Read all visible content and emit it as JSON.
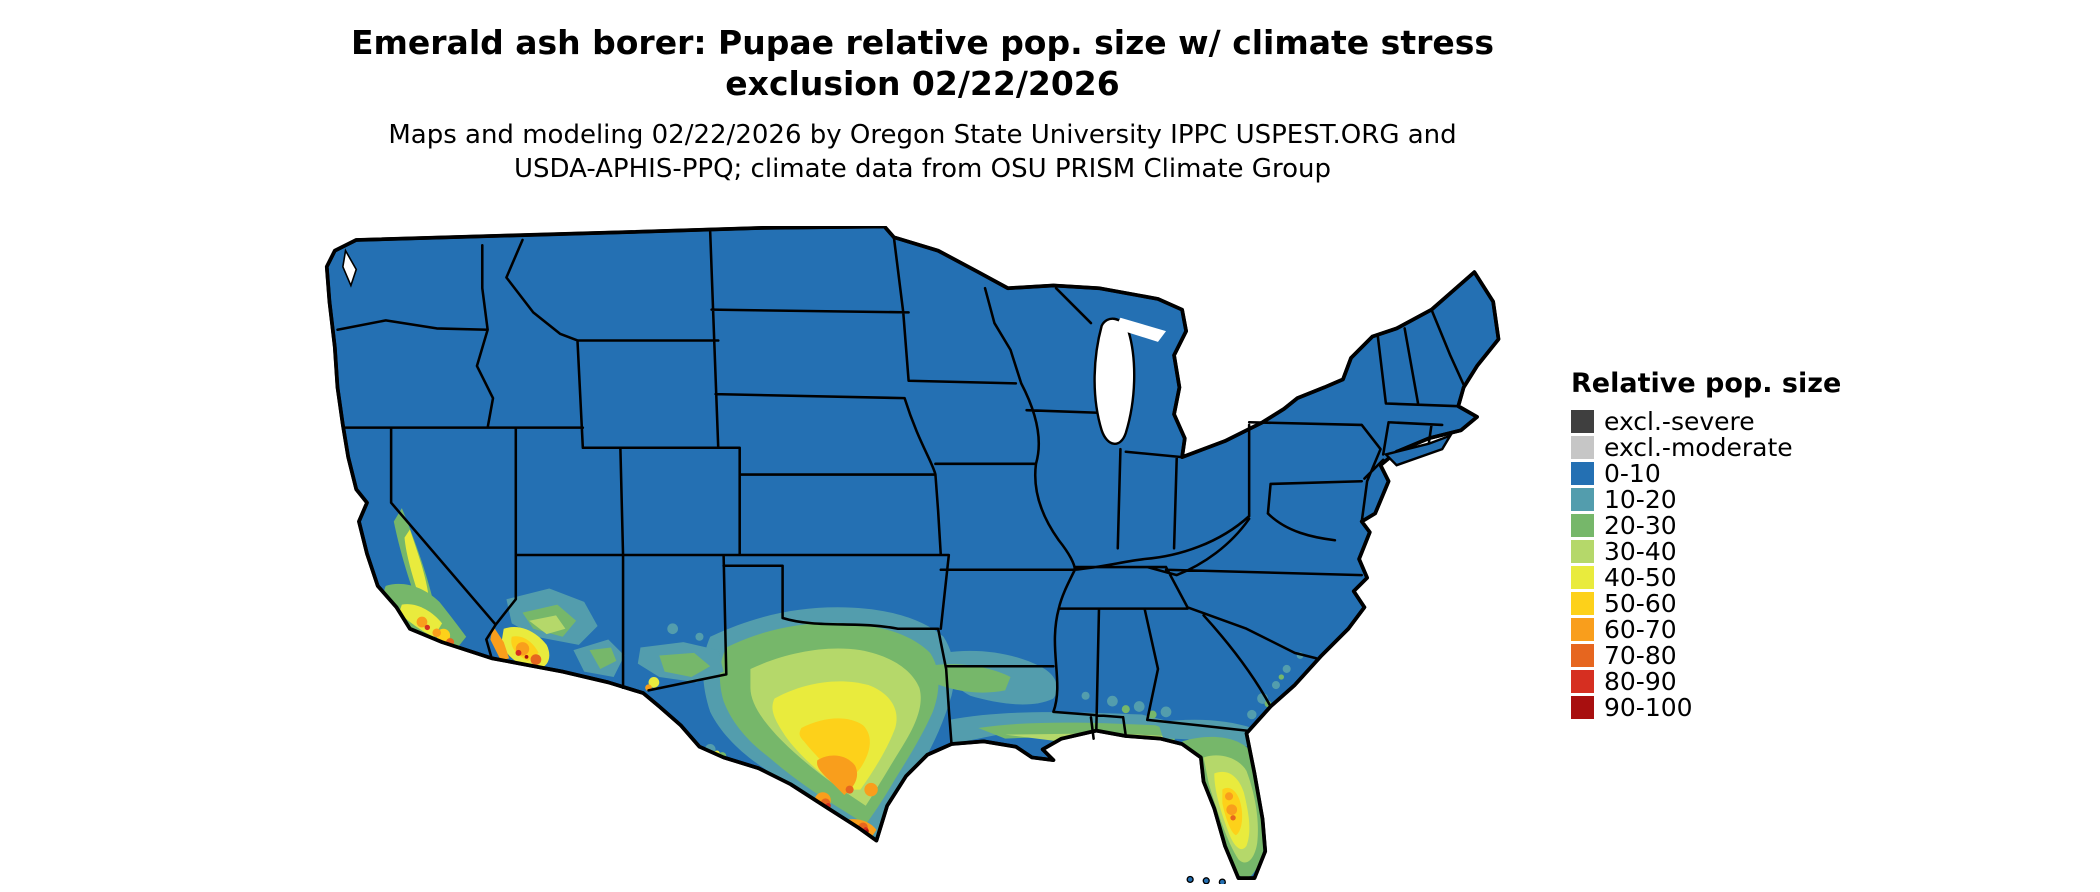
{
  "title": {
    "line1": "Emerald ash borer: Pupae relative pop. size w/ climate stress",
    "line2": "exclusion 02/22/2026"
  },
  "subtitle": {
    "line1": "Maps and modeling 02/22/2026 by Oregon State University IPPC USPEST.ORG and",
    "line2": "USDA-APHIS-PPQ; climate data from OSU PRISM Climate Group"
  },
  "legend": {
    "title": "Relative pop. size",
    "items": [
      {
        "label": "excl.-severe",
        "palette_key": "excl_severe"
      },
      {
        "label": "excl.-moderate",
        "palette_key": "excl_moderate"
      },
      {
        "label": "0-10",
        "palette_key": "v0_10"
      },
      {
        "label": "10-20",
        "palette_key": "v10_20"
      },
      {
        "label": "20-30",
        "palette_key": "v20_30"
      },
      {
        "label": "30-40",
        "palette_key": "v30_40"
      },
      {
        "label": "40-50",
        "palette_key": "v40_50"
      },
      {
        "label": "50-60",
        "palette_key": "v50_60"
      },
      {
        "label": "60-70",
        "palette_key": "v60_70"
      },
      {
        "label": "70-80",
        "palette_key": "v70_80"
      },
      {
        "label": "80-90",
        "palette_key": "v80_90"
      },
      {
        "label": "90-100",
        "palette_key": "v90_100"
      }
    ]
  },
  "map": {
    "description": "Contiguous United States choropleth raster of relative population size",
    "palette": {
      "excl_severe": "#3f3f3f",
      "excl_moderate": "#c6c6c6",
      "v0_10": "#2470b3",
      "v10_20": "#539dad",
      "v20_30": "#76b76a",
      "v30_40": "#b5d86a",
      "v40_50": "#e9eb3d",
      "v50_60": "#fdd11a",
      "v60_70": "#f99e1c",
      "v70_80": "#e6661f",
      "v80_90": "#d62f21",
      "v90_100": "#a80f0f"
    },
    "land_border_color": "#000000",
    "water_color": "#ffffff"
  }
}
